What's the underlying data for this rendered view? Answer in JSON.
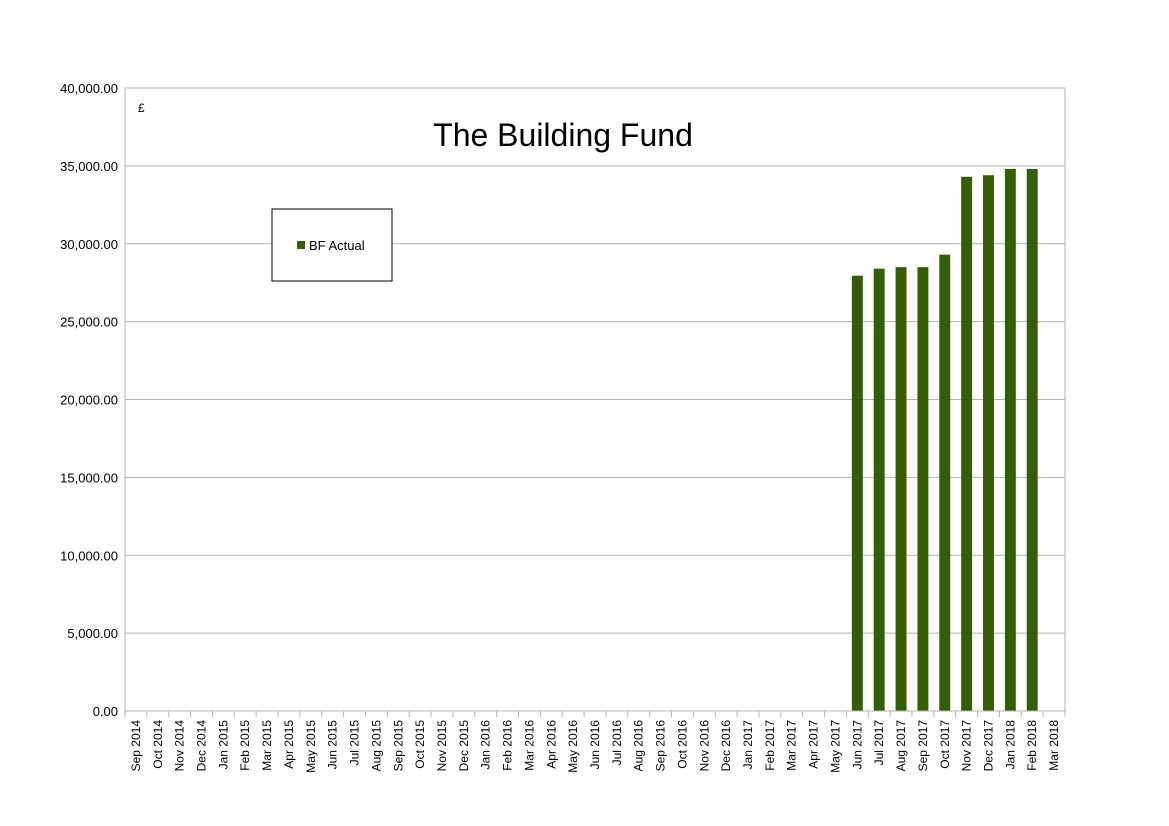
{
  "chart_data": {
    "type": "bar",
    "title": "The Building Fund",
    "unit_label": "£",
    "xlabel": "",
    "ylabel": "",
    "ylim": [
      0,
      40000
    ],
    "y_ticks": [
      "0.00",
      "5,000.00",
      "10,000.00",
      "15,000.00",
      "20,000.00",
      "25,000.00",
      "30,000.00",
      "35,000.00",
      "40,000.00"
    ],
    "grid": true,
    "legend_position": "top-left",
    "categories": [
      "Sep 2014",
      "Oct 2014",
      "Nov 2014",
      "Dec 2014",
      "Jan 2015",
      "Feb 2015",
      "Mar 2015",
      "Apr 2015",
      "May 2015",
      "Jun 2015",
      "Jul 2015",
      "Aug 2015",
      "Sep 2015",
      "Oct 2015",
      "Nov 2015",
      "Dec 2015",
      "Jan 2016",
      "Feb 2016",
      "Mar 2016",
      "Apr 2016",
      "May 2016",
      "Jun 2016",
      "Jul 2016",
      "Aug 2016",
      "Sep 2016",
      "Oct 2016",
      "Nov 2016",
      "Dec 2016",
      "Jan 2017",
      "Feb 2017",
      "Mar 2017",
      "Apr 2017",
      "May 2017",
      "Jun 2017",
      "Jul 2017",
      "Aug 2017",
      "Sep 2017",
      "Oct 2017",
      "Nov 2017",
      "Dec 2017",
      "Jan 2018",
      "Feb 2018",
      "Mar 2018"
    ],
    "series": [
      {
        "name": "BF Actual",
        "color": "#355e04",
        "values": [
          null,
          null,
          null,
          null,
          null,
          null,
          null,
          null,
          null,
          null,
          null,
          null,
          null,
          null,
          null,
          null,
          null,
          null,
          null,
          null,
          null,
          null,
          null,
          null,
          null,
          null,
          null,
          null,
          null,
          null,
          null,
          null,
          null,
          27950,
          28400,
          28500,
          28500,
          29300,
          34300,
          34400,
          34800,
          34800,
          null
        ]
      }
    ]
  }
}
